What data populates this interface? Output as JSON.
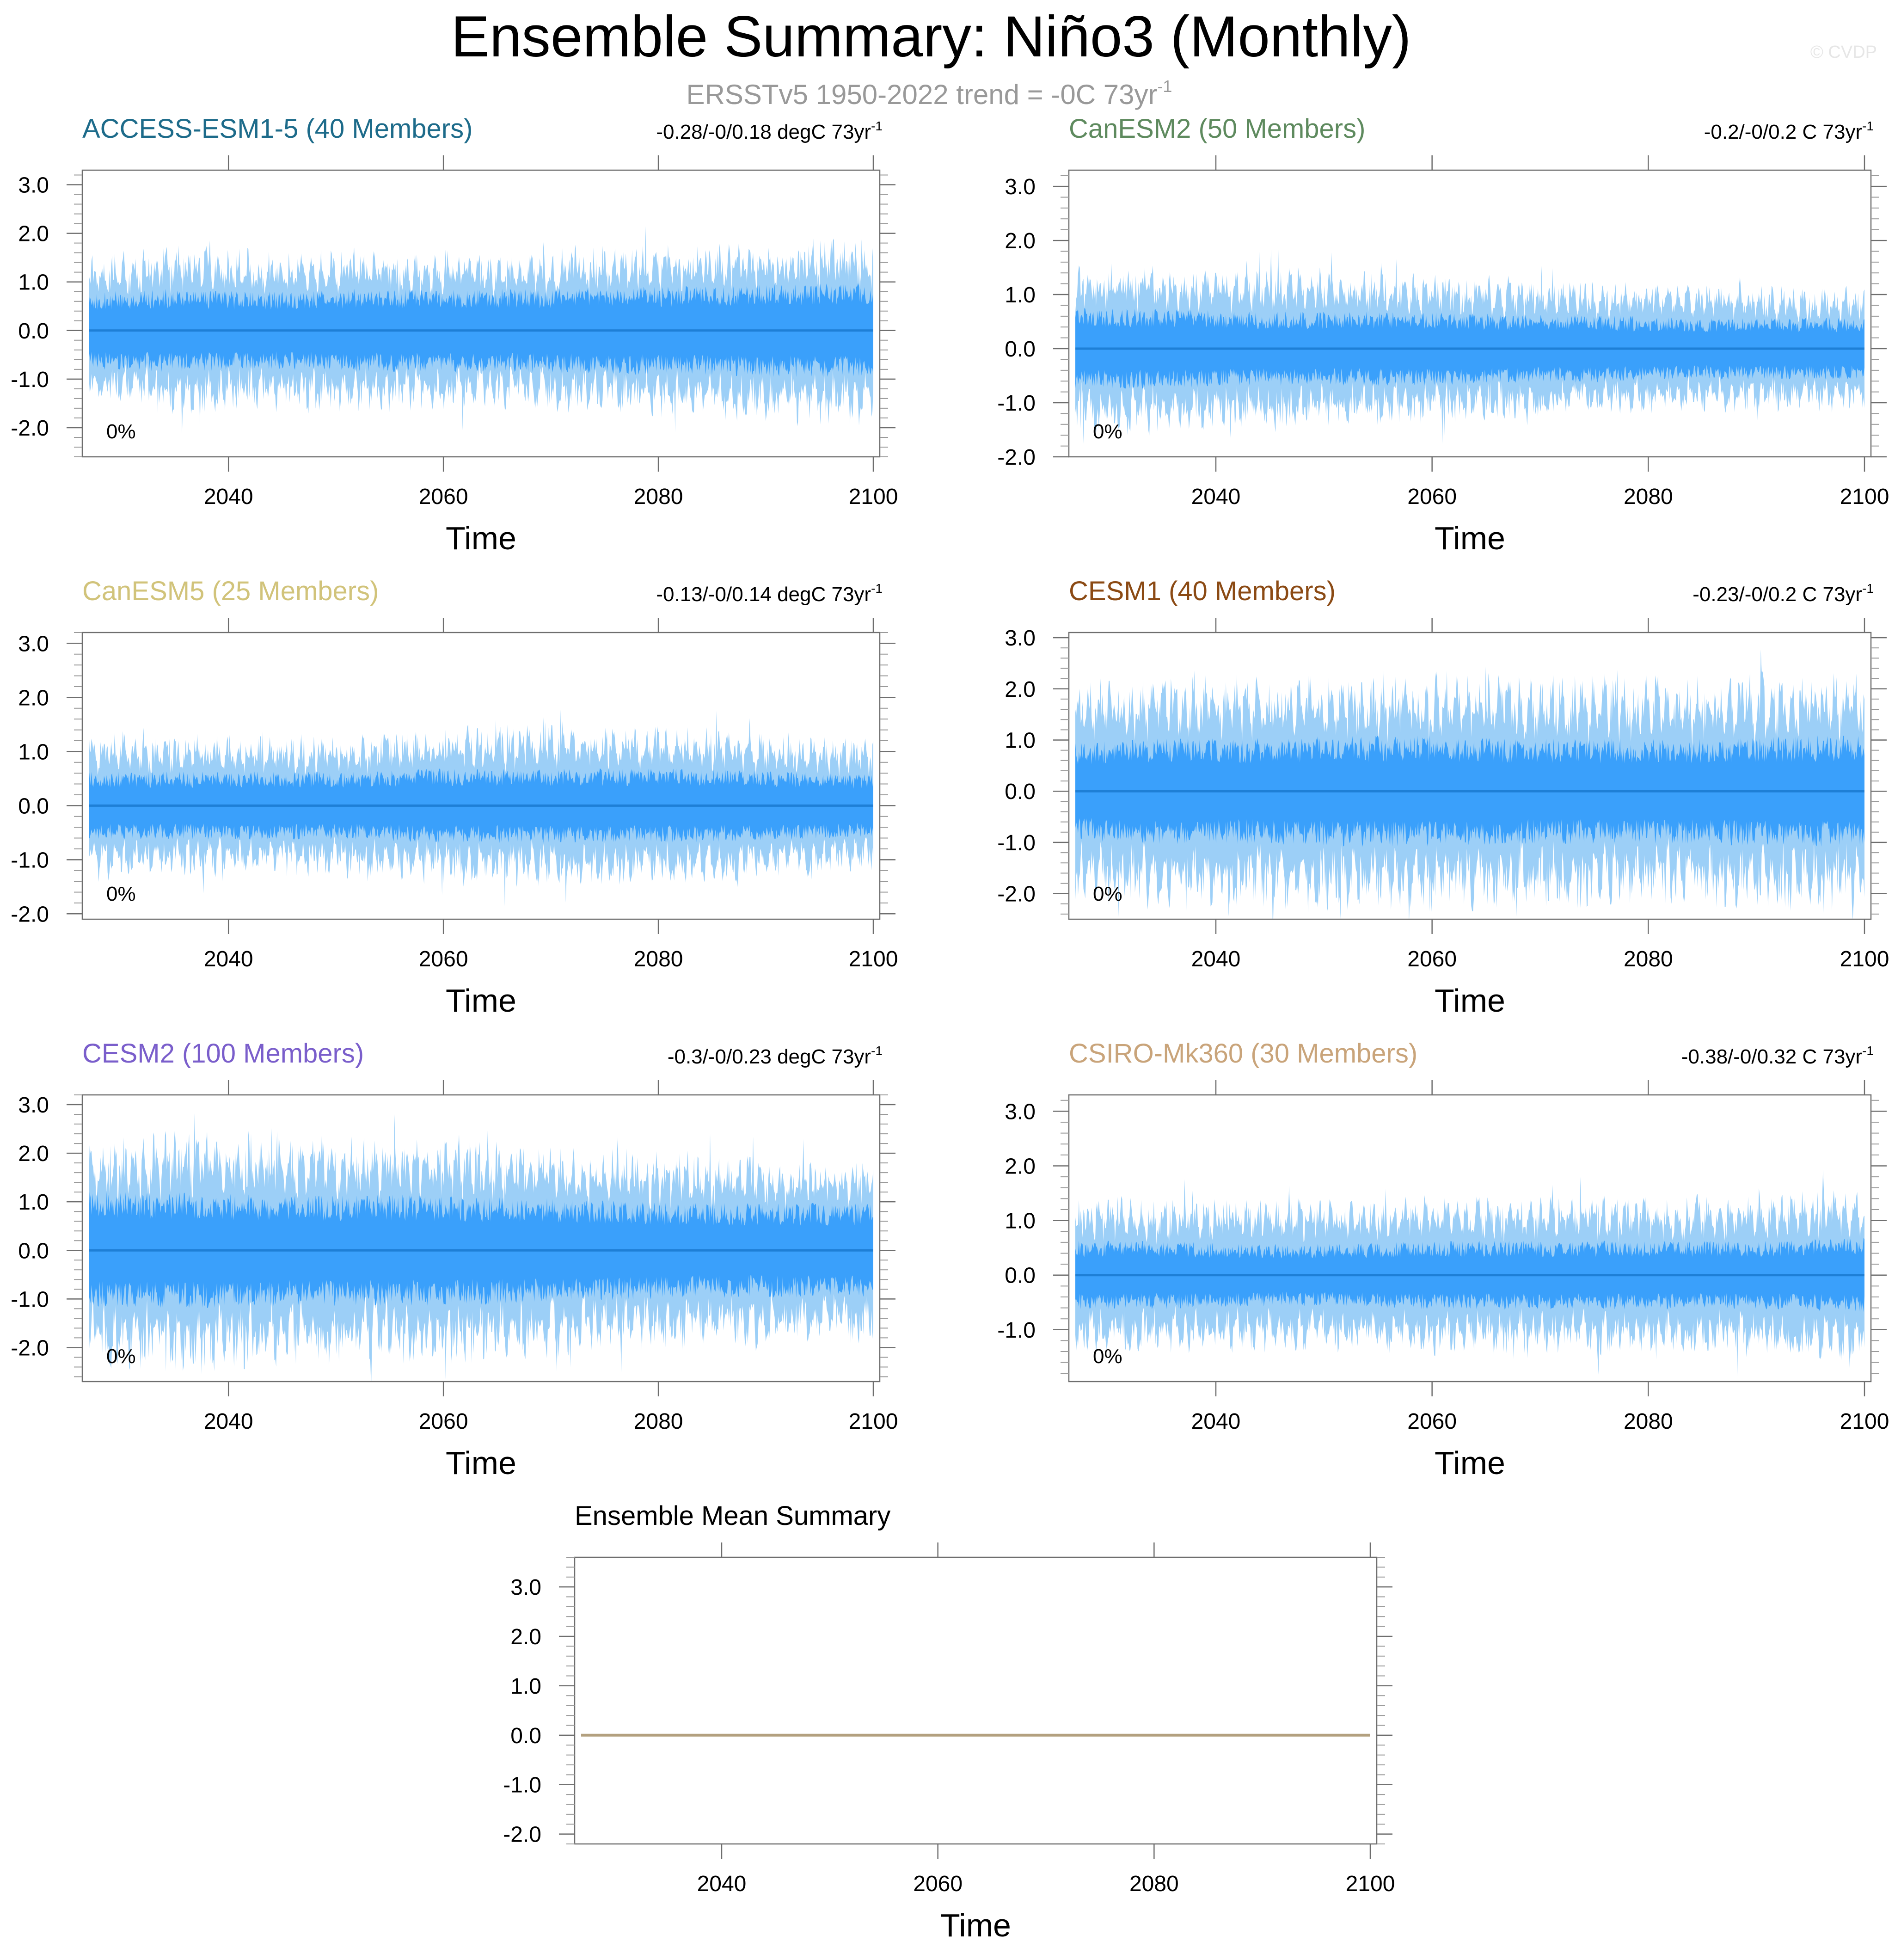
{
  "figure": {
    "title": "Ensemble Summary: Niño3 (Monthly)",
    "subtitle": "ERSSTv5 1950-2022 trend = -0C 73yr",
    "subtitle_sup": "-1",
    "credit": "© CVDP",
    "colors": {
      "outer_band": "#9ccff7",
      "inner_band": "#3aa0fb",
      "mean_line": "#1e7fd6",
      "ensemble_mean_line": "#b3a07f",
      "axes": "#6e6e6e"
    }
  },
  "chart_data": [
    {
      "type": "area",
      "title": "ACCESS-ESM1-5 (40 Members)",
      "title_color": "#1d6b8a",
      "trend_text": "-0.28/-0/0.18 degC 73yr",
      "trend_sup": "-1",
      "pct_label": "0%",
      "xlabel": "Time",
      "ylabel": "",
      "xlim": [
        2027,
        2100
      ],
      "ylim": [
        -2.6,
        3.3
      ],
      "xticks": [
        2040,
        2060,
        2080,
        2100
      ],
      "xtick_labels": [
        "2040",
        "2060",
        "2080",
        "2100"
      ],
      "yticks": [
        -2,
        -1,
        0,
        1,
        2,
        3
      ],
      "ytick_labels": [
        "-2.0",
        "-1.0",
        "0.0",
        "1.0",
        "2.0",
        "3.0"
      ],
      "ensemble_mean": 0.0,
      "outer_amplitude": [
        1.25,
        1.45,
        1.35,
        1.4,
        1.35,
        1.3,
        1.45,
        1.5,
        1.55,
        1.6
      ],
      "inner_amplitude": [
        0.7,
        0.75,
        0.7,
        0.75,
        0.75,
        0.75,
        0.8,
        0.8,
        0.85,
        0.85
      ],
      "seed": 11
    },
    {
      "type": "area",
      "title": "CanESM2 (50 Members)",
      "title_color": "#5e8a5e",
      "trend_text": "-0.2/-0/0.2 C 73yr",
      "trend_sup": "-1",
      "pct_label": "0%",
      "xlabel": "Time",
      "ylabel": "",
      "xlim": [
        2027,
        2100
      ],
      "ylim": [
        -2.0,
        3.3
      ],
      "xticks": [
        2040,
        2060,
        2080,
        2100
      ],
      "xtick_labels": [
        "2040",
        "2060",
        "2080",
        "2100"
      ],
      "yticks": [
        -2,
        -1,
        0,
        1,
        2,
        3
      ],
      "ytick_labels": [
        "-2.0",
        "-1.0",
        "0.0",
        "1.0",
        "2.0",
        "3.0"
      ],
      "ensemble_mean": 0.0,
      "outer_amplitude": [
        1.3,
        1.3,
        1.25,
        1.2,
        1.15,
        1.1,
        1.0,
        1.0,
        0.95,
        0.95
      ],
      "inner_amplitude": [
        0.65,
        0.65,
        0.6,
        0.6,
        0.6,
        0.55,
        0.55,
        0.5,
        0.5,
        0.5
      ],
      "seed": 23
    },
    {
      "type": "area",
      "title": "CanESM5 (25 Members)",
      "title_color": "#d1c37a",
      "trend_text": "-0.13/-0/0.14 degC 73yr",
      "trend_sup": "-1",
      "pct_label": "0%",
      "xlabel": "Time",
      "ylabel": "",
      "xlim": [
        2027,
        2100
      ],
      "ylim": [
        -2.1,
        3.2
      ],
      "xticks": [
        2040,
        2060,
        2080,
        2100
      ],
      "xtick_labels": [
        "2040",
        "2060",
        "2080",
        "2100"
      ],
      "yticks": [
        -2,
        -1,
        0,
        1,
        2,
        3
      ],
      "ytick_labels": [
        "-2.0",
        "-1.0",
        "0.0",
        "1.0",
        "2.0",
        "3.0"
      ],
      "ensemble_mean": 0.0,
      "outer_amplitude": [
        1.15,
        1.1,
        1.05,
        1.1,
        1.2,
        1.25,
        1.25,
        1.2,
        1.1,
        1.0
      ],
      "inner_amplitude": [
        0.55,
        0.55,
        0.55,
        0.55,
        0.6,
        0.6,
        0.6,
        0.6,
        0.55,
        0.5
      ],
      "seed": 37
    },
    {
      "type": "area",
      "title": "CESM1 (40 Members)",
      "title_color": "#8b4a14",
      "trend_text": "-0.23/-0/0.2 C 73yr",
      "trend_sup": "-1",
      "pct_label": "0%",
      "xlabel": "Time",
      "ylabel": "",
      "xlim": [
        2027,
        2100
      ],
      "ylim": [
        -2.5,
        3.1
      ],
      "xticks": [
        2040,
        2060,
        2080,
        2100
      ],
      "xtick_labels": [
        "2040",
        "2060",
        "2080",
        "2100"
      ],
      "yticks": [
        -2,
        -1,
        0,
        1,
        2,
        3
      ],
      "ytick_labels": [
        "-2.0",
        "-1.0",
        "0.0",
        "1.0",
        "2.0",
        "3.0"
      ],
      "ensemble_mean": 0.0,
      "outer_amplitude": [
        1.8,
        1.9,
        1.9,
        1.95,
        1.9,
        1.9,
        1.85,
        1.85,
        1.9,
        1.95
      ],
      "inner_amplitude": [
        0.85,
        0.9,
        0.9,
        0.95,
        0.95,
        0.9,
        0.9,
        0.9,
        0.95,
        0.95
      ],
      "seed": 41
    },
    {
      "type": "area",
      "title": "CESM2 (100 Members)",
      "title_color": "#7a5ecb",
      "trend_text": "-0.3/-0/0.23 degC 73yr",
      "trend_sup": "-1",
      "pct_label": "0%",
      "xlabel": "Time",
      "ylabel": "",
      "xlim": [
        2027,
        2100
      ],
      "ylim": [
        -2.7,
        3.2
      ],
      "xticks": [
        2040,
        2060,
        2080,
        2100
      ],
      "xtick_labels": [
        "2040",
        "2060",
        "2080",
        "2100"
      ],
      "yticks": [
        -2,
        -1,
        0,
        1,
        2,
        3
      ],
      "ytick_labels": [
        "-2.0",
        "-1.0",
        "0.0",
        "1.0",
        "2.0",
        "3.0"
      ],
      "ensemble_mean": 0.0,
      "outer_amplitude": [
        2.0,
        2.0,
        2.0,
        1.95,
        1.9,
        1.85,
        1.75,
        1.65,
        1.6,
        1.6
      ],
      "inner_amplitude": [
        1.05,
        1.05,
        1.0,
        1.0,
        1.0,
        0.95,
        0.9,
        0.85,
        0.85,
        0.85
      ],
      "seed": 53
    },
    {
      "type": "area",
      "title": "CSIRO-Mk360 (30 Members)",
      "title_color": "#c9a47a",
      "trend_text": "-0.38/-0/0.32 C 73yr",
      "trend_sup": "-1",
      "pct_label": "0%",
      "xlabel": "Time",
      "ylabel": "",
      "xlim": [
        2027,
        2100
      ],
      "ylim": [
        -1.95,
        3.3
      ],
      "xticks": [
        2040,
        2060,
        2080,
        2100
      ],
      "xtick_labels": [
        "2040",
        "2060",
        "2080",
        "2100"
      ],
      "yticks": [
        -1,
        0,
        1,
        2,
        3
      ],
      "ytick_labels": [
        "-1.0",
        "0.0",
        "1.0",
        "2.0",
        "3.0"
      ],
      "ensemble_mean": 0.0,
      "outer_amplitude": [
        1.2,
        1.15,
        1.15,
        1.15,
        1.2,
        1.2,
        1.2,
        1.2,
        1.25,
        1.3
      ],
      "inner_amplitude": [
        0.55,
        0.55,
        0.5,
        0.5,
        0.55,
        0.55,
        0.55,
        0.55,
        0.55,
        0.6
      ],
      "seed": 67
    },
    {
      "type": "line",
      "title": "Ensemble Mean Summary",
      "title_color": "#000000",
      "trend_text": "",
      "trend_sup": "",
      "pct_label": "",
      "xlabel": "Time",
      "ylabel": "",
      "xlim": [
        2027,
        2100
      ],
      "ylim": [
        -2.2,
        3.6
      ],
      "xticks": [
        2040,
        2060,
        2080,
        2100
      ],
      "xtick_labels": [
        "2040",
        "2060",
        "2080",
        "2100"
      ],
      "yticks": [
        -2,
        -1,
        0,
        1,
        2,
        3
      ],
      "ytick_labels": [
        "-2.0",
        "-1.0",
        "0.0",
        "1.0",
        "2.0",
        "3.0"
      ],
      "series": [
        {
          "name": "Ensemble Mean",
          "x": [
            2027,
            2100
          ],
          "values": [
            0.0,
            0.0
          ],
          "color": "#b3a07f"
        }
      ]
    }
  ]
}
